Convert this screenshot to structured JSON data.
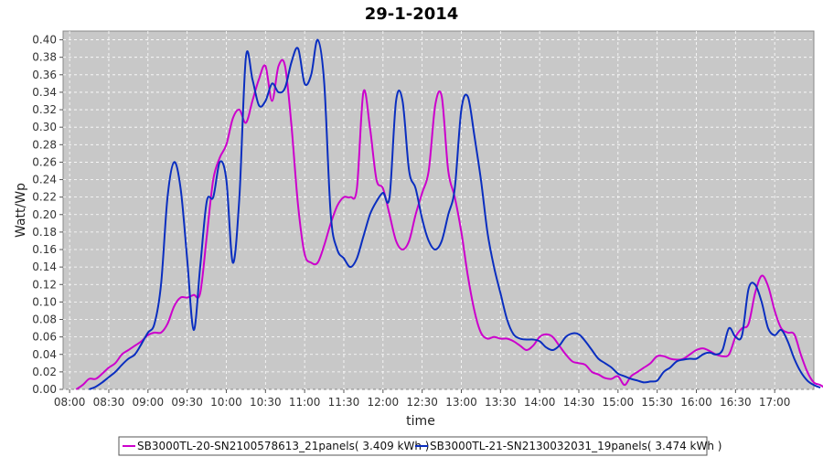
{
  "chart_data": {
    "type": "line",
    "title": "29-1-2014",
    "xlabel": "time",
    "ylabel": "Watt/Wp",
    "x_ticks": [
      "08:00",
      "08:30",
      "09:00",
      "09:30",
      "10:00",
      "10:30",
      "11:00",
      "11:30",
      "12:00",
      "12:30",
      "13:00",
      "13:30",
      "14:00",
      "14:30",
      "15:00",
      "15:30",
      "16:00",
      "16:30",
      "17:00"
    ],
    "y_ticks": [
      "0.00",
      "0.02",
      "0.04",
      "0.06",
      "0.08",
      "0.10",
      "0.12",
      "0.14",
      "0.16",
      "0.18",
      "0.20",
      "0.22",
      "0.24",
      "0.26",
      "0.28",
      "0.30",
      "0.32",
      "0.34",
      "0.36",
      "0.38",
      "0.40"
    ],
    "xlim": [
      "07:55",
      "17:30"
    ],
    "ylim": [
      0,
      0.41
    ],
    "grid": true,
    "legend_position": "bottom",
    "plot_background": "#c8c8c8",
    "series": [
      {
        "name": "SB3000TL-20-SN2100578613_21panels( 3.409 kWh )",
        "color": "#cc00cc",
        "points": [
          [
            "08:05",
            0.0
          ],
          [
            "08:10",
            0.005
          ],
          [
            "08:15",
            0.012
          ],
          [
            "08:20",
            0.012
          ],
          [
            "08:25",
            0.018
          ],
          [
            "08:30",
            0.025
          ],
          [
            "08:35",
            0.03
          ],
          [
            "08:40",
            0.04
          ],
          [
            "08:45",
            0.045
          ],
          [
            "08:50",
            0.05
          ],
          [
            "08:55",
            0.055
          ],
          [
            "09:00",
            0.062
          ],
          [
            "09:05",
            0.065
          ],
          [
            "09:10",
            0.065
          ],
          [
            "09:15",
            0.075
          ],
          [
            "09:20",
            0.095
          ],
          [
            "09:25",
            0.105
          ],
          [
            "09:30",
            0.105
          ],
          [
            "09:35",
            0.108
          ],
          [
            "09:40",
            0.11
          ],
          [
            "09:45",
            0.175
          ],
          [
            "09:50",
            0.24
          ],
          [
            "09:55",
            0.265
          ],
          [
            "10:00",
            0.28
          ],
          [
            "10:05",
            0.31
          ],
          [
            "10:10",
            0.32
          ],
          [
            "10:15",
            0.305
          ],
          [
            "10:20",
            0.33
          ],
          [
            "10:25",
            0.355
          ],
          [
            "10:30",
            0.37
          ],
          [
            "10:35",
            0.33
          ],
          [
            "10:40",
            0.37
          ],
          [
            "10:45",
            0.37
          ],
          [
            "10:50",
            0.3
          ],
          [
            "10:55",
            0.21
          ],
          [
            "11:00",
            0.155
          ],
          [
            "11:05",
            0.145
          ],
          [
            "11:10",
            0.145
          ],
          [
            "11:15",
            0.165
          ],
          [
            "11:20",
            0.19
          ],
          [
            "11:25",
            0.21
          ],
          [
            "11:30",
            0.22
          ],
          [
            "11:35",
            0.22
          ],
          [
            "11:40",
            0.23
          ],
          [
            "11:45",
            0.34
          ],
          [
            "11:50",
            0.3
          ],
          [
            "11:55",
            0.24
          ],
          [
            "12:00",
            0.23
          ],
          [
            "12:05",
            0.2
          ],
          [
            "12:10",
            0.17
          ],
          [
            "12:15",
            0.16
          ],
          [
            "12:20",
            0.17
          ],
          [
            "12:25",
            0.2
          ],
          [
            "12:30",
            0.225
          ],
          [
            "12:35",
            0.25
          ],
          [
            "12:40",
            0.325
          ],
          [
            "12:45",
            0.335
          ],
          [
            "12:50",
            0.25
          ],
          [
            "12:55",
            0.22
          ],
          [
            "13:00",
            0.18
          ],
          [
            "13:05",
            0.13
          ],
          [
            "13:10",
            0.09
          ],
          [
            "13:15",
            0.065
          ],
          [
            "13:20",
            0.058
          ],
          [
            "13:25",
            0.06
          ],
          [
            "13:30",
            0.058
          ],
          [
            "13:35",
            0.058
          ],
          [
            "13:40",
            0.055
          ],
          [
            "13:45",
            0.05
          ],
          [
            "13:50",
            0.045
          ],
          [
            "13:55",
            0.05
          ],
          [
            "14:00",
            0.06
          ],
          [
            "14:05",
            0.063
          ],
          [
            "14:10",
            0.06
          ],
          [
            "14:15",
            0.05
          ],
          [
            "14:20",
            0.04
          ],
          [
            "14:25",
            0.032
          ],
          [
            "14:30",
            0.03
          ],
          [
            "14:35",
            0.028
          ],
          [
            "14:40",
            0.02
          ],
          [
            "14:45",
            0.017
          ],
          [
            "14:50",
            0.013
          ],
          [
            "14:55",
            0.012
          ],
          [
            "15:00",
            0.015
          ],
          [
            "15:05",
            0.005
          ],
          [
            "15:10",
            0.015
          ],
          [
            "15:15",
            0.02
          ],
          [
            "15:20",
            0.025
          ],
          [
            "15:25",
            0.03
          ],
          [
            "15:30",
            0.038
          ],
          [
            "15:35",
            0.038
          ],
          [
            "15:40",
            0.035
          ],
          [
            "15:45",
            0.034
          ],
          [
            "15:50",
            0.035
          ],
          [
            "15:55",
            0.04
          ],
          [
            "16:00",
            0.045
          ],
          [
            "16:05",
            0.047
          ],
          [
            "16:10",
            0.044
          ],
          [
            "16:15",
            0.04
          ],
          [
            "16:20",
            0.038
          ],
          [
            "16:25",
            0.04
          ],
          [
            "16:30",
            0.06
          ],
          [
            "16:35",
            0.07
          ],
          [
            "16:40",
            0.075
          ],
          [
            "16:45",
            0.11
          ],
          [
            "16:50",
            0.13
          ],
          [
            "16:55",
            0.118
          ],
          [
            "17:00",
            0.09
          ],
          [
            "17:05",
            0.07
          ],
          [
            "17:10",
            0.065
          ],
          [
            "17:15",
            0.063
          ],
          [
            "17:20",
            0.04
          ],
          [
            "17:25",
            0.02
          ],
          [
            "17:30",
            0.008
          ],
          [
            "17:35",
            0.005
          ],
          [
            "17:40",
            0.0
          ]
        ]
      },
      {
        "name": "SB3000TL-21-SN2130032031_19panels( 3.474 kWh )",
        "color": "#0a2ec0",
        "points": [
          [
            "08:15",
            0.0
          ],
          [
            "08:20",
            0.003
          ],
          [
            "08:25",
            0.008
          ],
          [
            "08:30",
            0.014
          ],
          [
            "08:35",
            0.02
          ],
          [
            "08:40",
            0.028
          ],
          [
            "08:45",
            0.035
          ],
          [
            "08:50",
            0.04
          ],
          [
            "08:55",
            0.052
          ],
          [
            "09:00",
            0.065
          ],
          [
            "09:05",
            0.075
          ],
          [
            "09:10",
            0.12
          ],
          [
            "09:15",
            0.22
          ],
          [
            "09:20",
            0.26
          ],
          [
            "09:25",
            0.23
          ],
          [
            "09:30",
            0.15
          ],
          [
            "09:35",
            0.068
          ],
          [
            "09:40",
            0.14
          ],
          [
            "09:45",
            0.215
          ],
          [
            "09:50",
            0.22
          ],
          [
            "09:55",
            0.26
          ],
          [
            "10:00",
            0.24
          ],
          [
            "10:05",
            0.145
          ],
          [
            "10:10",
            0.22
          ],
          [
            "10:15",
            0.38
          ],
          [
            "10:20",
            0.355
          ],
          [
            "10:25",
            0.325
          ],
          [
            "10:30",
            0.33
          ],
          [
            "10:35",
            0.35
          ],
          [
            "10:40",
            0.34
          ],
          [
            "10:45",
            0.345
          ],
          [
            "10:50",
            0.375
          ],
          [
            "10:55",
            0.39
          ],
          [
            "11:00",
            0.35
          ],
          [
            "11:05",
            0.36
          ],
          [
            "11:10",
            0.4
          ],
          [
            "11:15",
            0.35
          ],
          [
            "11:20",
            0.2
          ],
          [
            "11:25",
            0.16
          ],
          [
            "11:30",
            0.15
          ],
          [
            "11:35",
            0.14
          ],
          [
            "11:40",
            0.15
          ],
          [
            "11:45",
            0.175
          ],
          [
            "11:50",
            0.2
          ],
          [
            "11:55",
            0.215
          ],
          [
            "12:00",
            0.225
          ],
          [
            "12:05",
            0.22
          ],
          [
            "12:10",
            0.33
          ],
          [
            "12:15",
            0.33
          ],
          [
            "12:20",
            0.25
          ],
          [
            "12:25",
            0.23
          ],
          [
            "12:30",
            0.195
          ],
          [
            "12:35",
            0.17
          ],
          [
            "12:40",
            0.16
          ],
          [
            "12:45",
            0.17
          ],
          [
            "12:50",
            0.2
          ],
          [
            "12:55",
            0.23
          ],
          [
            "13:00",
            0.32
          ],
          [
            "13:05",
            0.335
          ],
          [
            "13:10",
            0.29
          ],
          [
            "13:15",
            0.24
          ],
          [
            "13:20",
            0.18
          ],
          [
            "13:25",
            0.14
          ],
          [
            "13:30",
            0.11
          ],
          [
            "13:35",
            0.08
          ],
          [
            "13:40",
            0.063
          ],
          [
            "13:45",
            0.058
          ],
          [
            "13:50",
            0.057
          ],
          [
            "13:55",
            0.057
          ],
          [
            "14:00",
            0.055
          ],
          [
            "14:05",
            0.048
          ],
          [
            "14:10",
            0.045
          ],
          [
            "14:15",
            0.05
          ],
          [
            "14:20",
            0.06
          ],
          [
            "14:25",
            0.064
          ],
          [
            "14:30",
            0.063
          ],
          [
            "14:35",
            0.055
          ],
          [
            "14:40",
            0.045
          ],
          [
            "14:45",
            0.035
          ],
          [
            "14:50",
            0.03
          ],
          [
            "14:55",
            0.025
          ],
          [
            "15:00",
            0.018
          ],
          [
            "15:05",
            0.015
          ],
          [
            "15:10",
            0.012
          ],
          [
            "15:15",
            0.01
          ],
          [
            "15:20",
            0.008
          ],
          [
            "15:25",
            0.009
          ],
          [
            "15:30",
            0.01
          ],
          [
            "15:35",
            0.02
          ],
          [
            "15:40",
            0.025
          ],
          [
            "15:45",
            0.032
          ],
          [
            "15:50",
            0.034
          ],
          [
            "15:55",
            0.035
          ],
          [
            "16:00",
            0.035
          ],
          [
            "16:05",
            0.04
          ],
          [
            "16:10",
            0.042
          ],
          [
            "16:15",
            0.04
          ],
          [
            "16:20",
            0.045
          ],
          [
            "16:25",
            0.07
          ],
          [
            "16:30",
            0.06
          ],
          [
            "16:35",
            0.062
          ],
          [
            "16:40",
            0.115
          ],
          [
            "16:45",
            0.12
          ],
          [
            "16:50",
            0.1
          ],
          [
            "16:55",
            0.07
          ],
          [
            "17:00",
            0.062
          ],
          [
            "17:05",
            0.068
          ],
          [
            "17:10",
            0.055
          ],
          [
            "17:15",
            0.035
          ],
          [
            "17:20",
            0.02
          ],
          [
            "17:25",
            0.01
          ],
          [
            "17:30",
            0.005
          ],
          [
            "17:35",
            0.002
          ]
        ]
      }
    ]
  }
}
